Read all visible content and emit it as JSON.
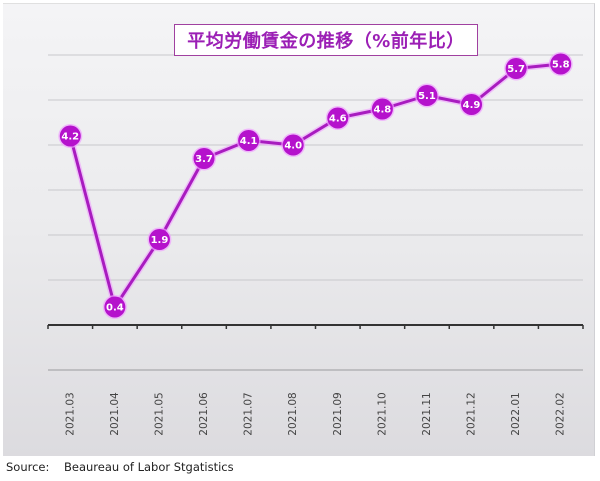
{
  "chart_data": {
    "type": "line",
    "title": "平均労働賃金の推移（%前年比）",
    "xlabel": "",
    "ylabel": "",
    "categories": [
      "2021.03",
      "2021.04",
      "2021.05",
      "2021.06",
      "2021.07",
      "2021.08",
      "2021.09",
      "2021.10",
      "2021.11",
      "2021.12",
      "2022.01",
      "2022.02"
    ],
    "series": [
      {
        "name": "平均労働賃金（%前年比）",
        "values": [
          4.2,
          0.4,
          1.9,
          3.7,
          4.1,
          4.0,
          4.6,
          4.8,
          5.1,
          4.9,
          5.7,
          5.8
        ],
        "color": "#b012c8"
      }
    ],
    "ylim": [
      -1,
      6
    ],
    "grid": true,
    "y_axis_labels_visible": false,
    "data_labels": true,
    "legend": "none"
  },
  "colors": {
    "line": "#a81cbf",
    "marker": "#b512cc",
    "marker_glow": "#f0a0ff",
    "title": "#9b1fb5",
    "title_border": "#a040a0",
    "gridline": "#c8c8cc",
    "axis": "#333333"
  },
  "source_text": "Source:    Beaureau of Labor Stgatistics"
}
